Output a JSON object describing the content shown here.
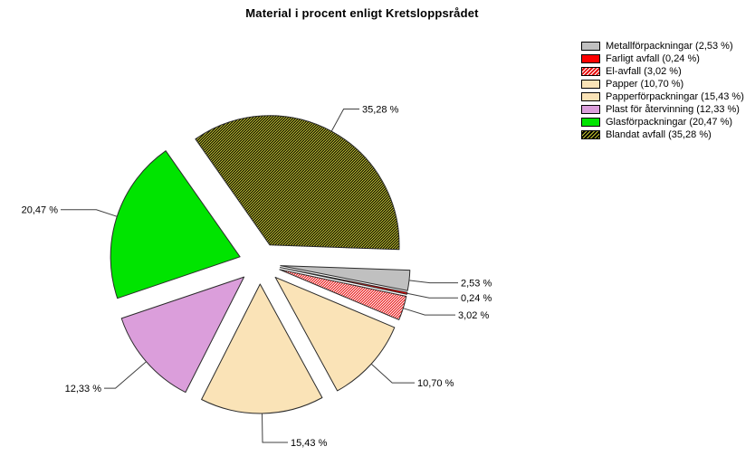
{
  "title": "Material i procent enligt Kretsloppsrådet",
  "chart_data": {
    "type": "pie",
    "title": "Material i procent enligt Kretsloppsrådet",
    "exploded": true,
    "direction": "clockwise",
    "start_angle_deg": 2,
    "legend_position": "top-right",
    "value_unit": "%",
    "value_format": "comma-decimal",
    "total": 100,
    "slices": [
      {
        "name": "Metallförpackningar",
        "value": 2.53,
        "pct_label": "2,53 %",
        "legend_label": "Metallförpackningar (2,53 %)",
        "color": "#c0c0c0",
        "hatch": false,
        "hatch_color": null
      },
      {
        "name": "Farligt avfall",
        "value": 0.24,
        "pct_label": "0,24 %",
        "legend_label": "Farligt avfall (0,24 %)",
        "color": "#ff0000",
        "hatch": false,
        "hatch_color": null
      },
      {
        "name": "El-avfall",
        "value": 3.02,
        "pct_label": "3,02 %",
        "legend_label": "El-avfall (3,02 %)",
        "color": "#e81010",
        "hatch": true,
        "hatch_color": "#ffffff"
      },
      {
        "name": "Papper",
        "value": 10.7,
        "pct_label": "10,70 %",
        "legend_label": "Papper (10,70 %)",
        "color": "#fae3b7",
        "hatch": false,
        "hatch_color": null
      },
      {
        "name": "Papperförpackningar",
        "value": 15.43,
        "pct_label": "15,43 %",
        "legend_label": "Papperförpackningar (15,43 %)",
        "color": "#fae3b7",
        "hatch": false,
        "hatch_color": null
      },
      {
        "name": "Plast för återvinning",
        "value": 12.33,
        "pct_label": "12,33 %",
        "legend_label": "Plast för återvinning (12,33 %)",
        "color": "#db9edb",
        "hatch": false,
        "hatch_color": null
      },
      {
        "name": "Glasförpackningar",
        "value": 20.47,
        "pct_label": "20,47 %",
        "legend_label": "Glasförpackningar (20,47 %)",
        "color": "#00e400",
        "hatch": false,
        "hatch_color": null
      },
      {
        "name": "Blandat avfall",
        "value": 35.28,
        "pct_label": "35,28 %",
        "legend_label": "Blandat avfall (35,28 %)",
        "color": "#000000",
        "hatch": true,
        "hatch_color": "#c9c92f"
      }
    ],
    "outline_color": "#2b2b2b",
    "leader_line_color": "#404040"
  }
}
